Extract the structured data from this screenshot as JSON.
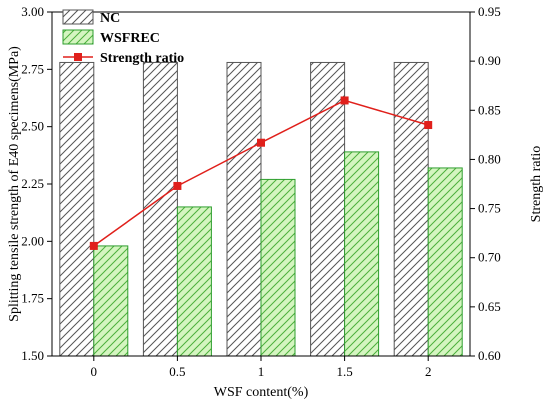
{
  "chart_data": {
    "type": "bar",
    "categories": [
      "0",
      "0.5",
      "1",
      "1.5",
      "2"
    ],
    "xlabel": "WSF content(%)",
    "ylabel": "Splitting tensile strength of E40 specimens(MPa)",
    "y2label": "Strength ratio",
    "ylim": [
      1.5,
      3.0
    ],
    "y2lim": [
      0.6,
      0.95
    ],
    "yticks": [
      "1.50",
      "1.75",
      "2.00",
      "2.25",
      "2.50",
      "2.75",
      "3.00"
    ],
    "y2ticks": [
      "0.60",
      "0.65",
      "0.70",
      "0.75",
      "0.80",
      "0.85",
      "0.90",
      "0.95"
    ],
    "series": [
      {
        "name": "NC",
        "kind": "bar",
        "pattern": "diagonal-hatch",
        "color": "#555555",
        "values": [
          2.78,
          2.78,
          2.78,
          2.78,
          2.78
        ]
      },
      {
        "name": "WSFREC",
        "kind": "bar",
        "pattern": "diagonal-hatch",
        "color": "#2e9e2e",
        "fill": "#d4f5c0",
        "values": [
          1.98,
          2.15,
          2.27,
          2.39,
          2.32
        ]
      },
      {
        "name": "Strength ratio",
        "kind": "line",
        "axis": "right",
        "marker": "square",
        "color": "#e0201b",
        "values": [
          0.712,
          0.773,
          0.817,
          0.86,
          0.835
        ]
      }
    ],
    "legend": "top-left",
    "grid": false
  }
}
